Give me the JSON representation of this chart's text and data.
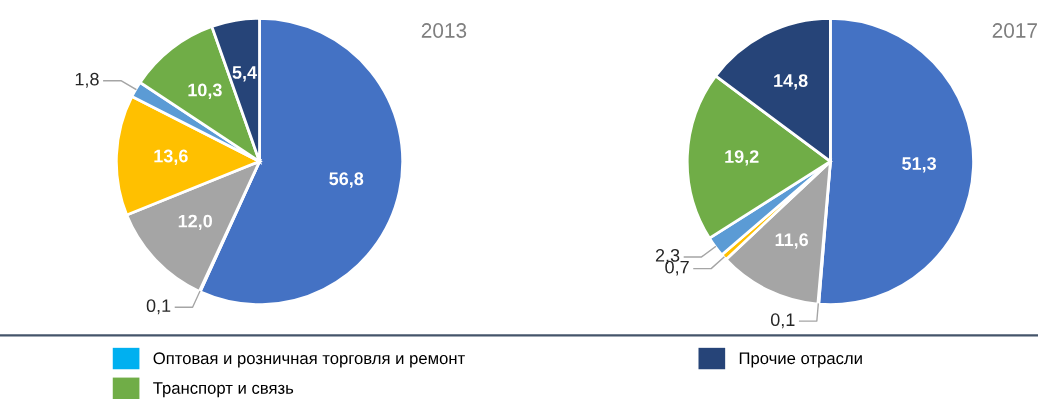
{
  "chart_data": [
    {
      "type": "pie",
      "title": "2013",
      "categories": [
        null,
        "Оптовая и розничная торговля и ремонт",
        null,
        null,
        null,
        "Транспорт и связь",
        "Прочие отрасли"
      ],
      "values": [
        56.8,
        0.1,
        12.0,
        13.6,
        1.8,
        10.3,
        5.4
      ],
      "value_labels": [
        "56,8",
        "0,1",
        "12,0",
        "13,6",
        "1,8",
        "10,3",
        "5,4"
      ],
      "colors": [
        "#4472c4",
        "#00b0f0",
        "#a5a5a5",
        "#ffc000",
        "#5b9bd5",
        "#70ad47",
        "#264478"
      ],
      "legend": "bottom"
    },
    {
      "type": "pie",
      "title": "2017",
      "categories": [
        null,
        null,
        null,
        null,
        null,
        null,
        null
      ],
      "values": [
        51.3,
        0.1,
        11.6,
        0.7,
        2.3,
        19.2,
        14.8
      ],
      "value_labels": [
        "51,3",
        "0,1",
        "11,6",
        "0,7",
        "2,3",
        "19,2",
        "14,8"
      ],
      "colors": [
        "#4472c4",
        "#00b0f0",
        "#a5a5a5",
        "#ffc000",
        "#5b9bd5",
        "#70ad47",
        "#264478"
      ]
    }
  ]
}
